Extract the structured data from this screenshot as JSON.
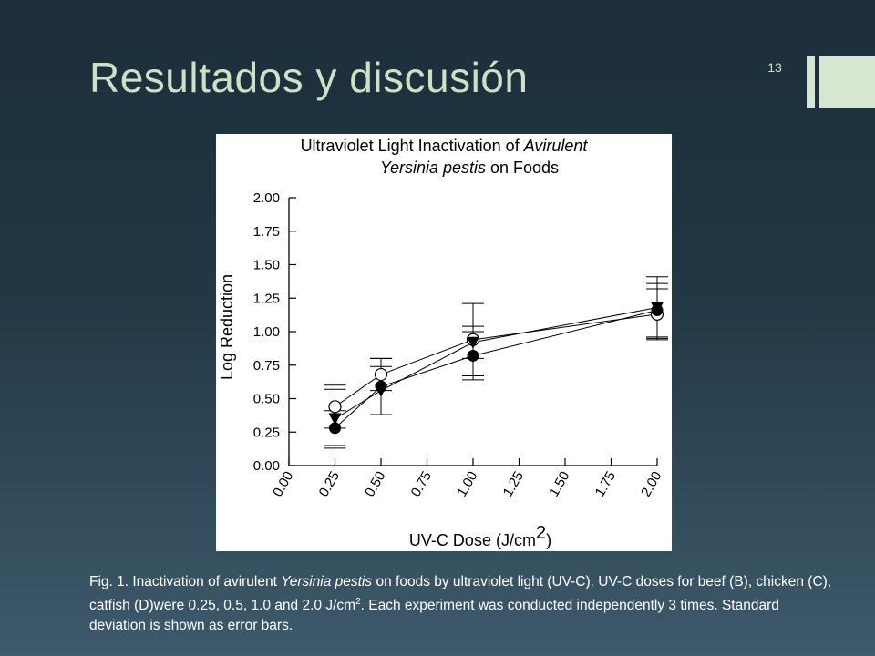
{
  "slide": {
    "title": "Resultados y discusión",
    "number": "13"
  },
  "colors": {
    "title": "#cfe0c6",
    "accent": "#d6e6d0",
    "caption": "#ffffff"
  },
  "chart_data": {
    "type": "line",
    "title_parts": [
      {
        "text": "Ultraviolet Light Inactivation of ",
        "italic": false,
        "line": 1
      },
      {
        "text": "Avirulent",
        "italic": true,
        "line": 1
      },
      {
        "text": "Yersinia pestis",
        "italic": true,
        "line": 2
      },
      {
        "text": " on Foods",
        "italic": false,
        "line": 2
      }
    ],
    "xlabel": "UV-C Dose (J/cm",
    "xlabel_sup": "2",
    "xlabel_close": ")",
    "ylabel": "Log Reduction",
    "xlim": [
      0,
      2
    ],
    "ylim": [
      0,
      2
    ],
    "xticks": [
      "0.00",
      "0.25",
      "0.50",
      "0.75",
      "1.00",
      "1.25",
      "1.50",
      "1.75",
      "2.00"
    ],
    "yticks": [
      "0.00",
      "0.25",
      "0.50",
      "0.75",
      "1.00",
      "1.25",
      "1.50",
      "1.75",
      "2.00"
    ],
    "x": [
      0.25,
      0.5,
      1.0,
      2.0
    ],
    "series": [
      {
        "marker": "open-circle",
        "values": [
          0.44,
          0.68,
          0.94,
          1.13
        ],
        "error": [
          0.16,
          0.12,
          0.27,
          0.19
        ]
      },
      {
        "marker": "filled-triangle-down",
        "values": [
          0.35,
          0.56,
          0.92,
          1.18
        ],
        "error": [
          0.22,
          0.18,
          0.12,
          0.23
        ]
      },
      {
        "marker": "filled-circle",
        "values": [
          0.28,
          0.59,
          0.82,
          1.16
        ],
        "error": [
          0.13,
          0.21,
          0.18,
          0.2
        ]
      }
    ]
  },
  "caption": {
    "prefix": "Fig. 1. Inactivation of avirulent ",
    "italic": "Yersinia pestis",
    "middle": " on foods by ultraviolet light (UV-C). UV-C doses for beef (B), chicken (C), catfish (D)were 0.25, 0.5, 1.0 and 2.0 J/cm",
    "sup": "2",
    "suffix": ". Each experiment was conducted independently 3 times. Standard deviation is shown as error bars."
  }
}
